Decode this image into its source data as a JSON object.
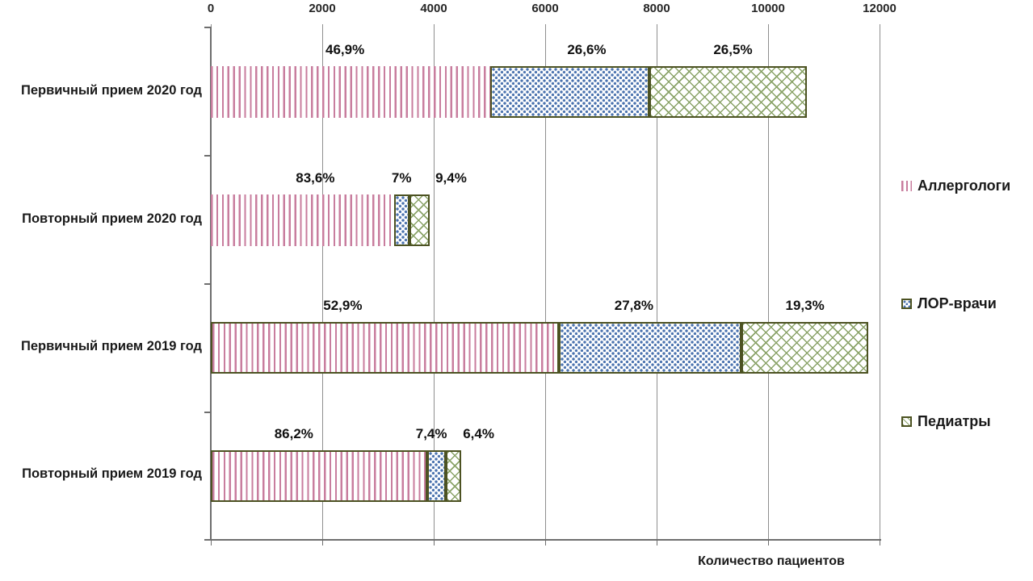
{
  "chart_data": {
    "type": "bar",
    "subtype": "horizontal-stacked",
    "title": "",
    "xlabel": "Количество пациентов",
    "ylabel": "",
    "grid": true,
    "legend_position": "right",
    "x_axis": {
      "min": 0,
      "max": 12000,
      "tick_interval": 2000,
      "tick_labels": [
        "0",
        "2000",
        "4000",
        "6000",
        "8000",
        "10000",
        "12000"
      ]
    },
    "categories": [
      "Первичный прием 2020 год",
      "Повторный прием 2020 год",
      "Первичный прием 2019 год",
      "Повторный прием 2019 год"
    ],
    "estimated_totals": [
      10700,
      3930,
      11800,
      4500
    ],
    "series": [
      {
        "name": "Аллергологи",
        "pattern": "pink-vertical-stripes",
        "color": "#c87d9e",
        "values": [
          5018,
          3286,
          6242,
          3879
        ],
        "percent_labels": [
          "46,9%",
          "83,6%",
          "52,9%",
          "86,2%"
        ],
        "label_dx": [
          -7,
          16,
          -52,
          -31
        ]
      },
      {
        "name": "ЛОР-врачи",
        "pattern": "blue-dots",
        "color": "#4a72ae",
        "values": [
          2846,
          275,
          3280,
          333
        ],
        "percent_labels": [
          "26,6%",
          "7%",
          "27,8%",
          "7,4%"
        ],
        "label_dx": [
          21,
          0,
          -20,
          -6
        ]
      },
      {
        "name": "Педиатры",
        "pattern": "green-crosshatch",
        "color": "#8aa368",
        "values": [
          2836,
          369,
          2278,
          288
        ],
        "percent_labels": [
          "26,5%",
          "9,4%",
          "19,3%",
          "6,4%"
        ],
        "label_dx": [
          6,
          39,
          0,
          31
        ]
      }
    ],
    "colors": {
      "bar_border": "#4c5222",
      "grid_line": "#8f8f8f",
      "axis_line": "#6e6e6e",
      "text": "#1a1a1a",
      "background": "#ffffff"
    }
  }
}
